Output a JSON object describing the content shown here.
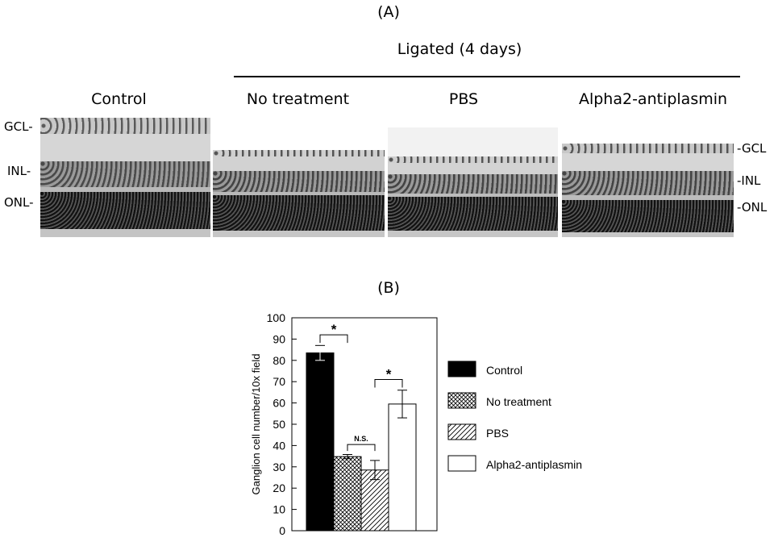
{
  "panel_a": {
    "label": "(A)",
    "group_title": "Ligated (4 days)",
    "columns": [
      "Control",
      "No treatment",
      "PBS",
      "Alpha2-antiplasmin"
    ],
    "layers_left": [
      "GCL-",
      "INL-",
      "ONL-"
    ],
    "layers_right": [
      "-GCL",
      "-INL",
      "-ONL"
    ]
  },
  "panel_b": {
    "label": "(B)",
    "significance": {
      "star": "*",
      "ns": "N.S."
    }
  },
  "chart_data": {
    "type": "bar",
    "title": "",
    "xlabel": "",
    "ylabel": "Ganglion cell number/10x field",
    "ylim": [
      0,
      100
    ],
    "yticks": [
      0,
      10,
      20,
      30,
      40,
      50,
      60,
      70,
      80,
      90,
      100
    ],
    "grid": false,
    "legend_position": "right",
    "categories": [
      "Control",
      "No treatment",
      "PBS",
      "Alpha2-antiplasmin"
    ],
    "values": [
      83.5,
      34.8,
      28.5,
      59.5
    ],
    "errors": [
      3.5,
      1.0,
      4.5,
      6.5
    ],
    "series": [
      {
        "name": "Control",
        "value": 83.5,
        "fill": "solid-black"
      },
      {
        "name": "No treatment",
        "value": 34.8,
        "fill": "crosshatch"
      },
      {
        "name": "PBS",
        "value": 28.5,
        "fill": "diagonal-hatch"
      },
      {
        "name": "Alpha2-antiplasmin",
        "value": 59.5,
        "fill": "white"
      }
    ],
    "annotations": [
      {
        "text": "*",
        "between": [
          "Control",
          "No treatment"
        ]
      },
      {
        "text": "N.S.",
        "between": [
          "No treatment",
          "PBS"
        ]
      },
      {
        "text": "*",
        "between": [
          "PBS",
          "Alpha2-antiplasmin"
        ]
      }
    ]
  }
}
